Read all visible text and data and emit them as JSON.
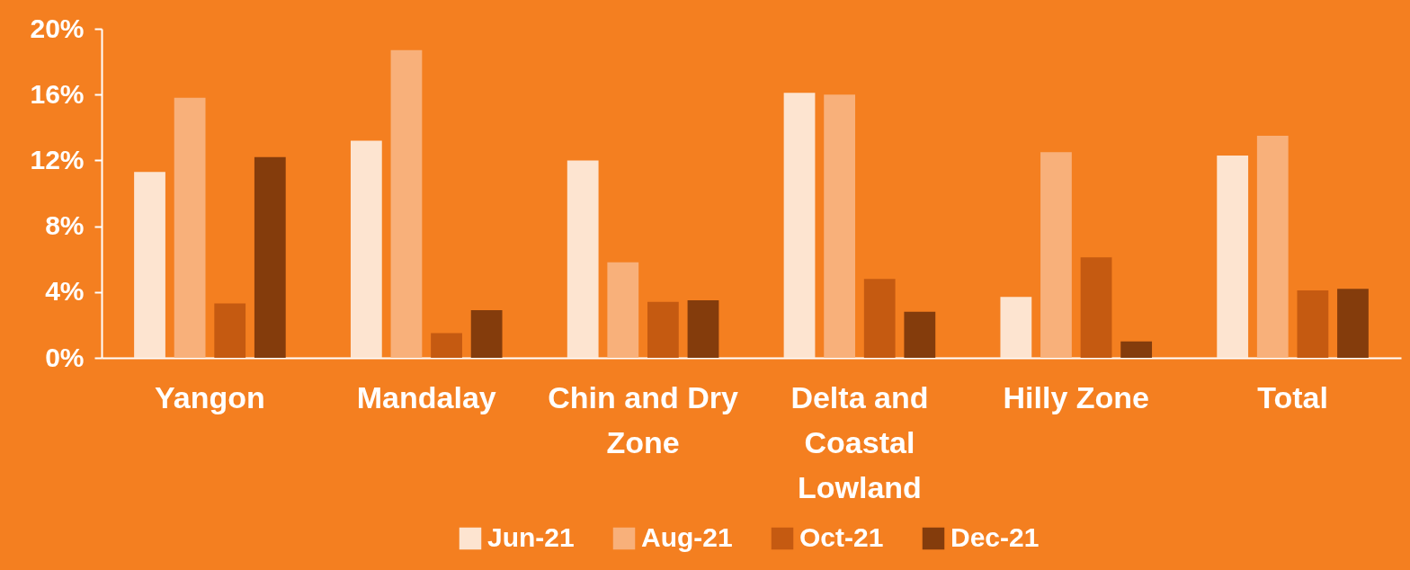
{
  "chart_data": {
    "type": "bar",
    "categories": [
      "Yangon",
      "Mandalay",
      "Chin and Dry Zone",
      "Delta and Coastal Lowland",
      "Hilly Zone",
      "Total"
    ],
    "series": [
      {
        "name": "Jun-21",
        "color": "#fde4d0",
        "values": [
          11.3,
          13.2,
          12.0,
          16.1,
          3.7,
          12.3
        ]
      },
      {
        "name": "Aug-21",
        "color": "#f8b07a",
        "values": [
          15.8,
          18.7,
          5.8,
          16.0,
          12.5,
          13.5
        ]
      },
      {
        "name": "Oct-21",
        "color": "#c55a11",
        "values": [
          3.3,
          1.5,
          3.4,
          4.8,
          6.1,
          4.1
        ]
      },
      {
        "name": "Dec-21",
        "color": "#843c0c",
        "values": [
          12.2,
          2.9,
          3.5,
          2.8,
          1.0,
          4.2
        ]
      }
    ],
    "ylim": [
      0,
      20
    ],
    "yticks": [
      {
        "value": 0,
        "label": "0%"
      },
      {
        "value": 4,
        "label": "4%"
      },
      {
        "value": 8,
        "label": "8%"
      },
      {
        "value": 12,
        "label": "12%"
      },
      {
        "value": 16,
        "label": "16%"
      },
      {
        "value": 20,
        "label": "20%"
      }
    ],
    "grid": false,
    "legend": "bottom"
  }
}
